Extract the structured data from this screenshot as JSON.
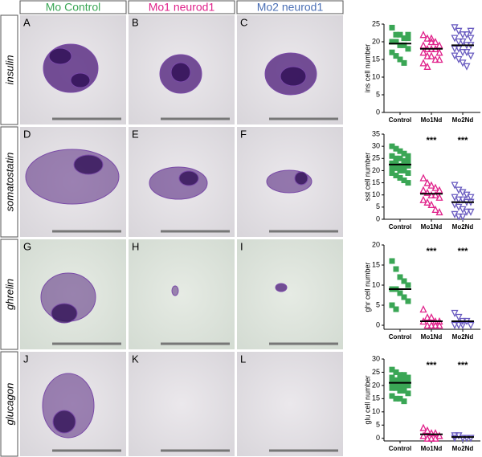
{
  "column_headers": [
    {
      "text": "Mo Control",
      "color": "#3aa655"
    },
    {
      "text": "Mo1 neurod1",
      "color": "#e0218a"
    },
    {
      "text": "Mo2 neurod1",
      "color": "#4a6fb5"
    }
  ],
  "row_labels": [
    "insulin",
    "somatostatin",
    "ghrelin",
    "glucagon"
  ],
  "panel_letters": [
    "A",
    "B",
    "C",
    "D",
    "E",
    "F",
    "G",
    "H",
    "I",
    "J",
    "K",
    "L"
  ],
  "chart_data": [
    {
      "type": "dotplot",
      "ylabel": "ins cell number",
      "categories": [
        "Control",
        "Mo1Nd",
        "Mo2Nd"
      ],
      "ylim": [
        0,
        25
      ],
      "yticks": [
        0,
        5,
        10,
        15,
        20,
        25
      ],
      "groups": [
        {
          "color": "#3aa655",
          "marker": "square",
          "mean": 19.5,
          "values": [
            24,
            22,
            22,
            21,
            21,
            20,
            20,
            19,
            19,
            18,
            17,
            16,
            15,
            14,
            22
          ]
        },
        {
          "color": "#e0218a",
          "marker": "triangle-up",
          "mean": 18,
          "values": [
            22,
            21,
            20,
            20,
            19,
            19,
            18,
            18,
            18,
            17,
            17,
            16,
            16,
            15,
            15,
            14,
            13,
            21
          ]
        },
        {
          "color": "#6a5cc0",
          "marker": "triangle-down",
          "mean": 19,
          "values": [
            24,
            23,
            22,
            22,
            21,
            21,
            20,
            20,
            19,
            19,
            18,
            18,
            17,
            17,
            16,
            16,
            15,
            14,
            13,
            23
          ]
        }
      ]
    },
    {
      "type": "dotplot",
      "ylabel": "sst cell number",
      "categories": [
        "Control",
        "Mo1Nd",
        "Mo2Nd"
      ],
      "ylim": [
        0,
        35
      ],
      "yticks": [
        0,
        5,
        10,
        15,
        20,
        25,
        30,
        35
      ],
      "groups": [
        {
          "color": "#3aa655",
          "marker": "square",
          "mean": 22.5,
          "values": [
            30,
            29,
            28,
            27,
            26,
            26,
            25,
            25,
            24,
            24,
            23,
            23,
            22,
            22,
            22,
            21,
            21,
            20,
            20,
            19,
            19,
            18,
            17,
            16,
            15
          ]
        },
        {
          "color": "#e0218a",
          "marker": "triangle-up",
          "mean": 10.5,
          "annotation": "***",
          "values": [
            17,
            15,
            14,
            13,
            12,
            12,
            11,
            10,
            10,
            9,
            8,
            7,
            6,
            4,
            3
          ]
        },
        {
          "color": "#6a5cc0",
          "marker": "triangle-down",
          "mean": 7,
          "annotation": "***",
          "values": [
            14,
            12,
            11,
            10,
            9,
            9,
            8,
            8,
            7,
            7,
            6,
            5,
            4,
            3,
            3,
            2,
            1,
            1
          ]
        }
      ]
    },
    {
      "type": "dotplot",
      "ylabel": "ghr cell number",
      "categories": [
        "Control",
        "Mo1Nd",
        "Mo2Nd"
      ],
      "ylim": [
        -1,
        20
      ],
      "yticks": [
        0,
        5,
        10,
        15,
        20
      ],
      "groups": [
        {
          "color": "#3aa655",
          "marker": "square",
          "mean": 9,
          "values": [
            16,
            14,
            12,
            11,
            10,
            9,
            9,
            8,
            7,
            6,
            5,
            4
          ]
        },
        {
          "color": "#e0218a",
          "marker": "triangle-up",
          "mean": 1,
          "annotation": "***",
          "values": [
            4,
            2,
            2,
            1,
            1,
            1,
            0,
            0,
            0,
            0
          ]
        },
        {
          "color": "#6a5cc0",
          "marker": "triangle-down",
          "mean": 1,
          "annotation": "***",
          "values": [
            3,
            2,
            1,
            1,
            0,
            0,
            0,
            0
          ]
        }
      ]
    },
    {
      "type": "dotplot",
      "ylabel": "glu cell number",
      "categories": [
        "Control",
        "Mo1Nd",
        "Mo2Nd"
      ],
      "ylim": [
        -1,
        30
      ],
      "yticks": [
        0,
        5,
        10,
        15,
        20,
        25,
        30
      ],
      "groups": [
        {
          "color": "#3aa655",
          "marker": "square",
          "mean": 21,
          "values": [
            26,
            25,
            24,
            24,
            23,
            23,
            22,
            22,
            22,
            21,
            21,
            21,
            20,
            20,
            20,
            19,
            19,
            18,
            18,
            17,
            16,
            15,
            15,
            14
          ]
        },
        {
          "color": "#e0218a",
          "marker": "triangle-up",
          "mean": 1.5,
          "annotation": "***",
          "values": [
            4,
            3,
            2,
            2,
            1,
            1,
            0,
            0,
            0
          ]
        },
        {
          "color": "#6a5cc0",
          "marker": "triangle-down",
          "mean": 0.5,
          "annotation": "***",
          "values": [
            1,
            1,
            0,
            0,
            0,
            0
          ]
        }
      ]
    }
  ]
}
